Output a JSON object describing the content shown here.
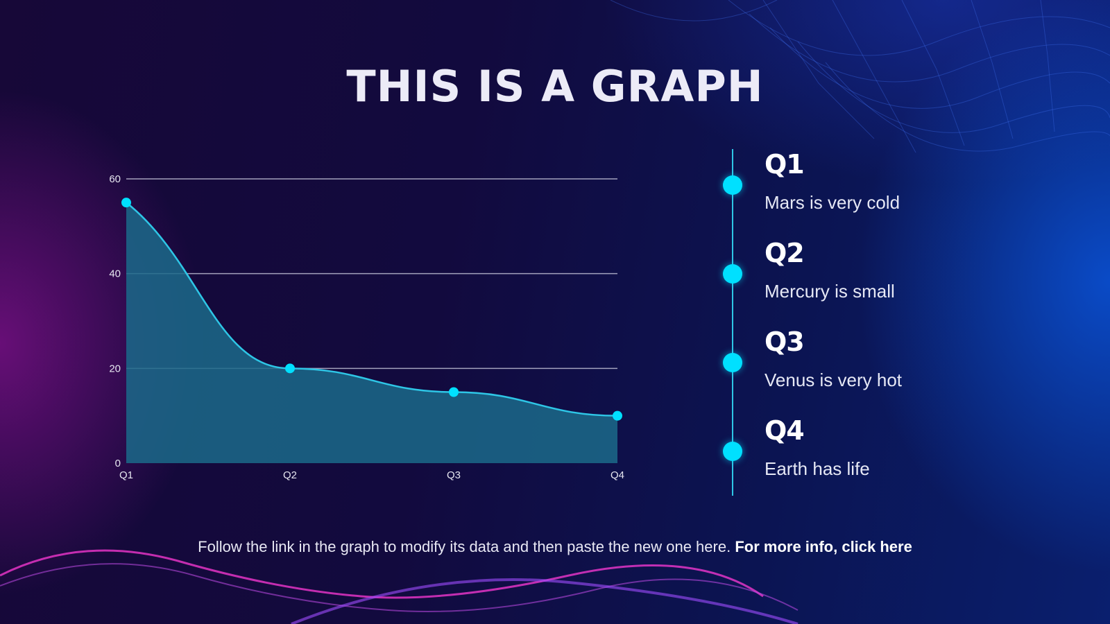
{
  "slide": {
    "title": "THIS IS A GRAPH",
    "footer_text": "Follow the link in the graph to modify its data and then paste the new one here.",
    "footer_link": "For more info, click here"
  },
  "colors": {
    "accent": "#00e0ff",
    "line": "#2ec6e6",
    "area_fill": "#1b6a8a",
    "gridline": "#c8c8dc",
    "text": "#ffffff"
  },
  "chart_data": {
    "type": "area",
    "categories": [
      "Q1",
      "Q2",
      "Q3",
      "Q4"
    ],
    "series": [
      {
        "values": [
          55,
          20,
          15,
          10
        ]
      }
    ],
    "yticks": [
      0,
      20,
      40,
      60
    ],
    "ylim": [
      0,
      60
    ],
    "grid": true,
    "title": "",
    "xlabel": "",
    "ylabel": ""
  },
  "timeline": [
    {
      "label": "Q1",
      "description": "Mars is very cold"
    },
    {
      "label": "Q2",
      "description": "Mercury is small"
    },
    {
      "label": "Q3",
      "description": "Venus is very hot"
    },
    {
      "label": "Q4",
      "description": "Earth has life"
    }
  ]
}
